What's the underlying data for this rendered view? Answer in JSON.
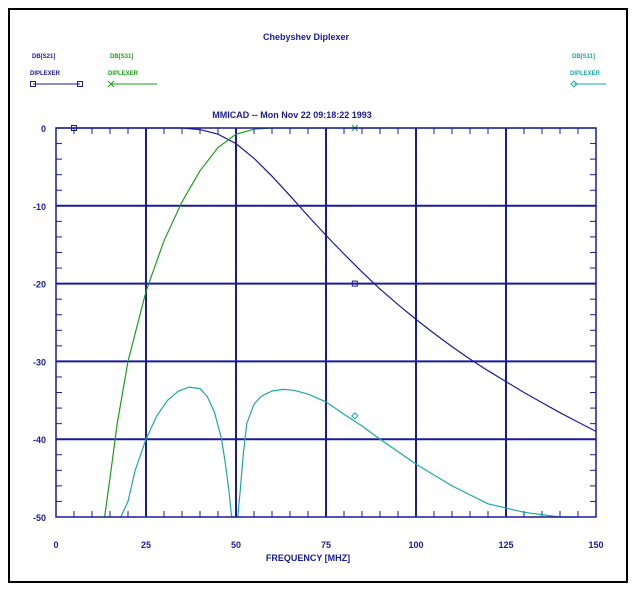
{
  "chart_data": {
    "type": "line",
    "title": "Chebyshev Diplexer",
    "subtitle": "MMICAD -- Mon Nov 22 09:18:22 1993",
    "xlabel": "FREQUENCY [MHZ]",
    "ylabel": "",
    "xlim": [
      0,
      150
    ],
    "ylim": [
      -50,
      0
    ],
    "x_ticks": [
      "0",
      "25",
      "50",
      "75",
      "100",
      "125",
      "150"
    ],
    "y_ticks": [
      "0",
      "-10",
      "-20",
      "-30",
      "-40",
      "-50"
    ],
    "grid": true,
    "series": [
      {
        "legend": "DB[S21]",
        "source": "DIPLEXER",
        "color": "#1a1a9e",
        "marker": "square",
        "x": [
          0,
          5,
          10,
          15,
          20,
          25,
          30,
          35,
          40,
          45,
          50,
          55,
          60,
          65,
          70,
          75,
          80,
          85,
          90,
          95,
          100,
          105,
          110,
          115,
          120,
          125,
          130,
          135,
          140,
          145,
          150
        ],
        "y": [
          0,
          0,
          0,
          0,
          0,
          0,
          0,
          0,
          -0.2,
          -0.8,
          -2.0,
          -3.9,
          -6.2,
          -8.7,
          -11.3,
          -13.8,
          -16.2,
          -18.5,
          -20.7,
          -22.7,
          -24.6,
          -26.4,
          -28.1,
          -29.7,
          -31.2,
          -32.6,
          -34.0,
          -35.3,
          -36.6,
          -37.8,
          -39.0
        ]
      },
      {
        "legend": "DB[S31]",
        "source": "DIPLEXER",
        "color": "#1a9e1a",
        "marker": "x",
        "x": [
          13.5,
          15,
          17,
          20,
          25,
          30,
          35,
          40,
          45,
          50,
          55,
          60,
          65,
          70,
          75,
          80,
          90,
          100,
          110,
          120,
          130,
          140,
          150
        ],
        "y": [
          -50,
          -45,
          -38,
          -30,
          -21,
          -14.5,
          -9.5,
          -5.5,
          -2.5,
          -0.8,
          -0.15,
          0,
          0,
          0,
          0,
          0,
          0,
          0,
          0,
          0,
          0,
          0,
          0
        ]
      },
      {
        "legend": "DB[S11]",
        "source": "DIPLEXER",
        "color": "#1aa8a8",
        "marker": "diamond",
        "x": [
          18,
          20,
          22,
          25,
          28,
          31,
          34,
          37,
          40,
          42,
          44,
          46,
          47,
          48,
          48.8,
          50.5,
          51.2,
          52,
          53,
          55,
          57,
          60,
          63,
          66,
          70,
          75,
          80,
          85,
          90,
          95,
          100,
          110,
          120,
          130,
          140,
          144
        ],
        "y": [
          -50,
          -48,
          -44,
          -40,
          -37,
          -35,
          -33.8,
          -33.3,
          -33.5,
          -34.5,
          -36.5,
          -40,
          -43,
          -46.5,
          -50,
          -50,
          -46.5,
          -42,
          -38,
          -35.5,
          -34.5,
          -33.8,
          -33.6,
          -33.7,
          -34.2,
          -35.2,
          -36.8,
          -38.3,
          -40,
          -41.6,
          -43.2,
          -46,
          -48.3,
          -49.4,
          -50,
          -50
        ]
      }
    ],
    "marker_positions": {
      "DB[S21]": [
        {
          "x": 5,
          "y": 0
        },
        {
          "x": 83,
          "y": -20
        }
      ],
      "DB[S31]": [
        {
          "x": 83,
          "y": 0
        }
      ],
      "DB[S11]": [
        {
          "x": 83,
          "y": -37
        }
      ]
    }
  }
}
